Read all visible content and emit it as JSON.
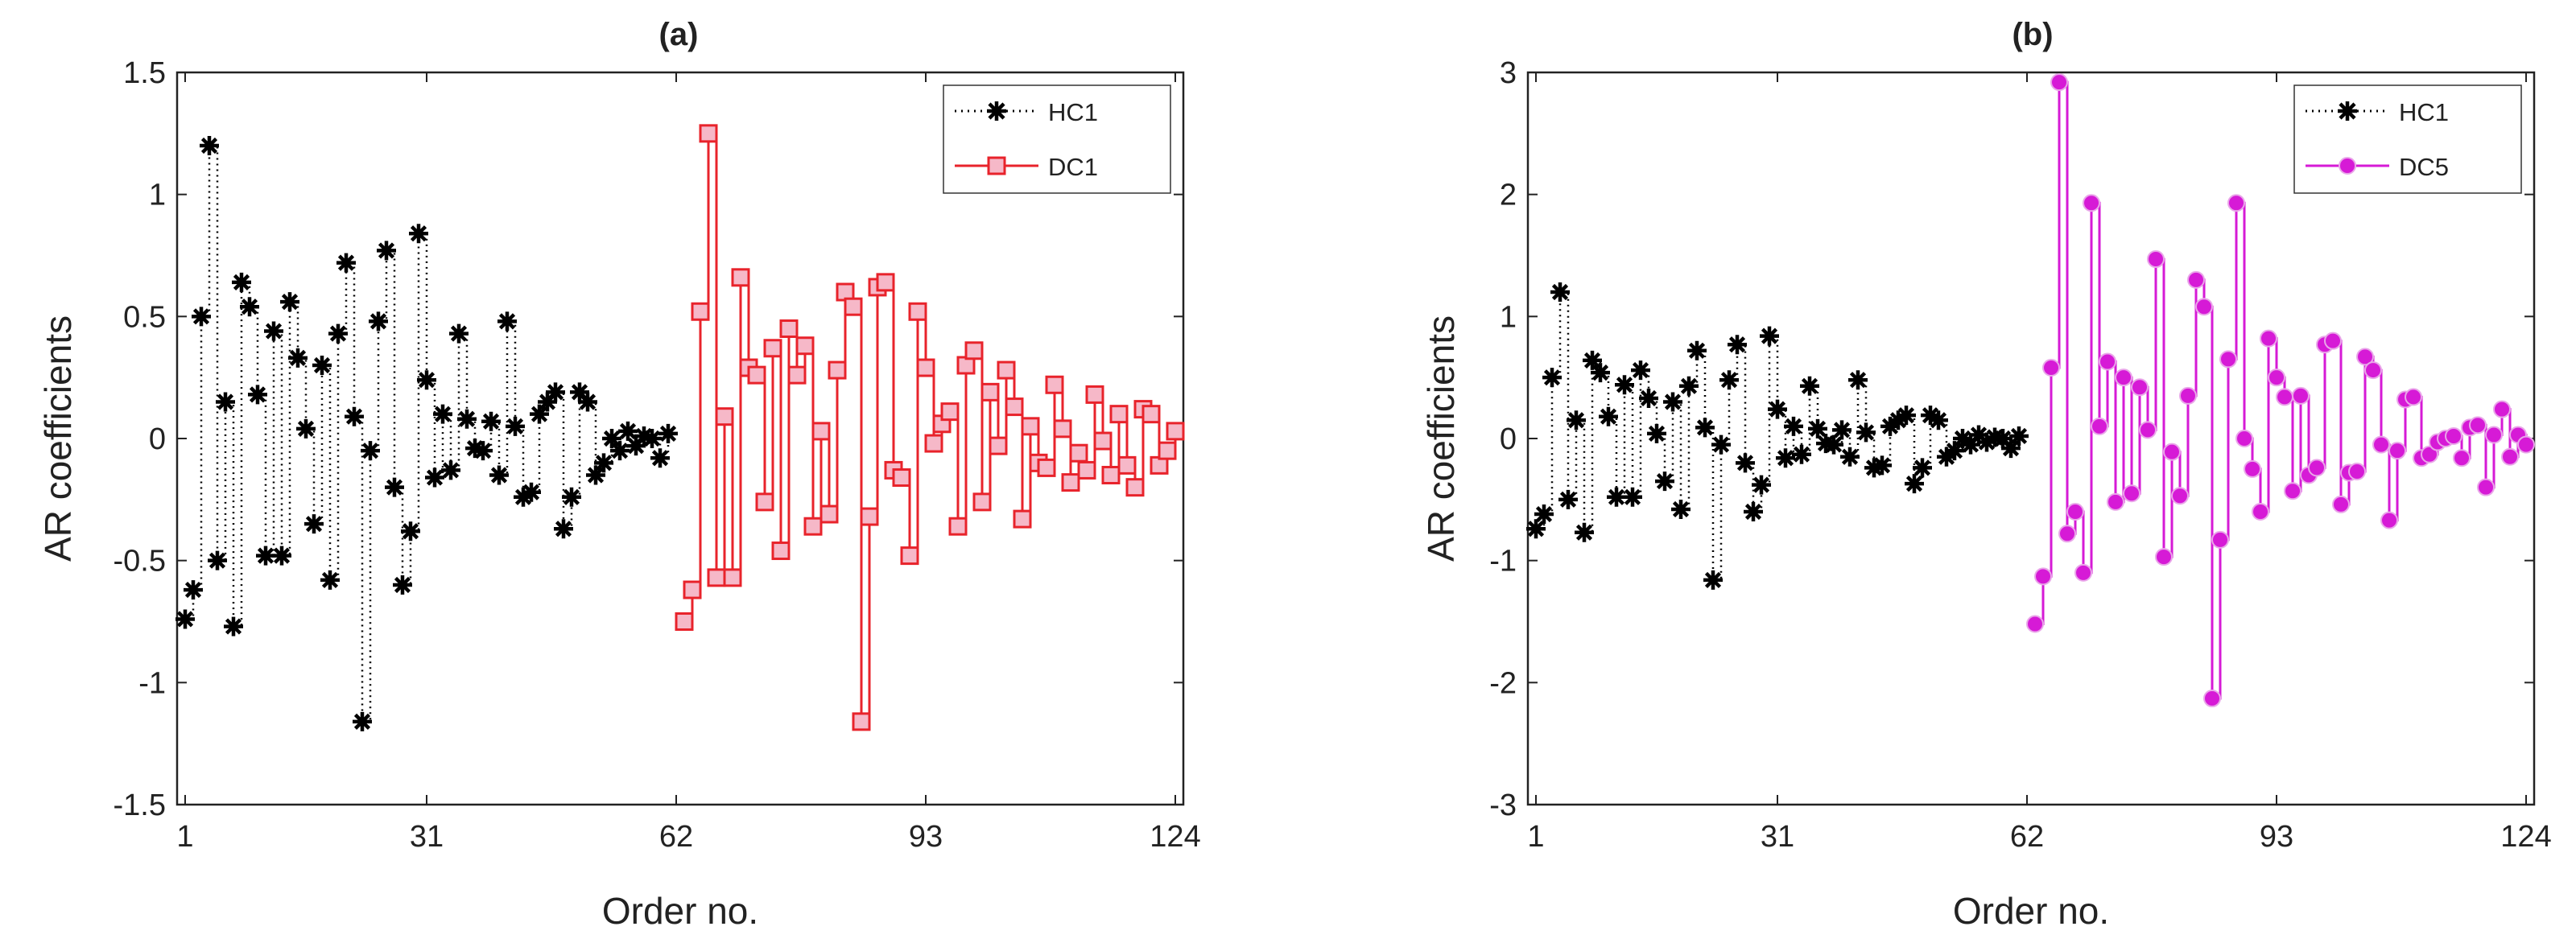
{
  "chart_data": [
    {
      "type": "line",
      "title": "(a)",
      "xlabel": "Order no.",
      "ylabel": "AR coefficients",
      "xlim": [
        0,
        125
      ],
      "ylim": [
        -1.5,
        1.5
      ],
      "xticks": [
        1,
        31,
        62,
        93,
        124
      ],
      "xtick_labels": [
        "1",
        "31",
        "62",
        "93",
        "124"
      ],
      "yticks": [
        -1.5,
        -1,
        -0.5,
        0,
        0.5,
        1,
        1.5
      ],
      "ytick_labels": [
        "-1.5",
        "-1",
        "-0.5",
        "0",
        "0.5",
        "1",
        "1.5"
      ],
      "legend": "top-right",
      "series": [
        {
          "name": "HC1",
          "color": "#000000",
          "style": "dotted-star",
          "x_start": 1,
          "values": [
            -0.74,
            -0.62,
            0.5,
            1.2,
            -0.5,
            0.15,
            -0.77,
            0.64,
            0.54,
            0.18,
            -0.48,
            0.44,
            -0.48,
            0.56,
            0.33,
            0.04,
            -0.35,
            0.3,
            -0.58,
            0.43,
            0.72,
            0.09,
            -1.16,
            -0.05,
            0.48,
            0.77,
            -0.2,
            -0.6,
            -0.38,
            0.84,
            0.24,
            -0.16,
            0.1,
            -0.13,
            0.43,
            0.08,
            -0.04,
            -0.05,
            0.07,
            -0.15,
            0.48,
            0.05,
            -0.24,
            -0.22,
            0.1,
            0.15,
            0.19,
            -0.37,
            -0.24,
            0.19,
            0.15,
            -0.15,
            -0.1,
            0.0,
            -0.05,
            0.03,
            -0.03,
            0.01,
            0.0,
            -0.08,
            0.02
          ]
        },
        {
          "name": "DC1",
          "color": "#e8232b",
          "style": "step-square",
          "x_start": 63,
          "values": [
            -0.75,
            -0.62,
            0.52,
            1.25,
            -0.57,
            0.09,
            -0.57,
            0.66,
            0.29,
            0.26,
            -0.26,
            0.37,
            -0.46,
            0.45,
            0.26,
            0.38,
            -0.36,
            0.03,
            -0.31,
            0.28,
            0.6,
            0.54,
            -1.16,
            -0.32,
            0.62,
            0.64,
            -0.13,
            -0.16,
            -0.48,
            0.52,
            0.29,
            -0.02,
            0.06,
            0.11,
            -0.36,
            0.3,
            0.36,
            -0.26,
            0.19,
            -0.03,
            0.28,
            0.13,
            -0.33,
            0.05,
            -0.1,
            -0.12,
            0.22,
            0.04,
            -0.18,
            -0.06,
            -0.13,
            0.18,
            -0.01,
            -0.15,
            0.1,
            -0.11,
            -0.2,
            0.12,
            0.1,
            -0.11,
            -0.05,
            0.03
          ]
        }
      ]
    },
    {
      "type": "line",
      "title": "(b)",
      "xlabel": "Order no.",
      "ylabel": "AR coefficients",
      "xlim": [
        0,
        125
      ],
      "ylim": [
        -3,
        3
      ],
      "xticks": [
        1,
        31,
        62,
        93,
        124
      ],
      "xtick_labels": [
        "1",
        "31",
        "62",
        "93",
        "124"
      ],
      "yticks": [
        -3,
        -2,
        -1,
        0,
        1,
        2,
        3
      ],
      "ytick_labels": [
        "-3",
        "-2",
        "-1",
        "0",
        "1",
        "2",
        "3"
      ],
      "legend": "top-right",
      "series": [
        {
          "name": "HC1",
          "color": "#000000",
          "style": "dotted-star",
          "x_start": 1,
          "values": [
            -0.74,
            -0.62,
            0.5,
            1.2,
            -0.5,
            0.15,
            -0.77,
            0.64,
            0.54,
            0.18,
            -0.48,
            0.44,
            -0.48,
            0.56,
            0.33,
            0.04,
            -0.35,
            0.3,
            -0.58,
            0.43,
            0.72,
            0.09,
            -1.16,
            -0.05,
            0.48,
            0.77,
            -0.2,
            -0.6,
            -0.38,
            0.84,
            0.24,
            -0.16,
            0.1,
            -0.13,
            0.43,
            0.08,
            -0.04,
            -0.05,
            0.07,
            -0.15,
            0.48,
            0.05,
            -0.24,
            -0.22,
            0.1,
            0.15,
            0.19,
            -0.37,
            -0.24,
            0.19,
            0.15,
            -0.15,
            -0.1,
            0.0,
            -0.05,
            0.03,
            -0.03,
            0.01,
            0.0,
            -0.08,
            0.02
          ]
        },
        {
          "name": "DC5",
          "color": "#d61ad6",
          "style": "step-circle",
          "x_start": 63,
          "values": [
            -1.52,
            -1.13,
            0.58,
            2.92,
            -0.78,
            -0.6,
            -1.1,
            1.93,
            0.1,
            0.63,
            -0.52,
            0.5,
            -0.45,
            0.42,
            0.07,
            1.47,
            -0.97,
            -0.11,
            -0.47,
            0.35,
            1.3,
            1.08,
            -2.13,
            -0.83,
            0.65,
            1.93,
            0.0,
            -0.25,
            -0.6,
            0.82,
            0.5,
            0.34,
            -0.43,
            0.35,
            -0.3,
            -0.24,
            0.77,
            0.8,
            -0.54,
            -0.28,
            -0.27,
            0.67,
            0.56,
            -0.05,
            -0.67,
            -0.1,
            0.32,
            0.34,
            -0.16,
            -0.13,
            -0.03,
            0.0,
            0.02,
            -0.16,
            0.09,
            0.11,
            -0.4,
            0.03,
            0.24,
            -0.15,
            0.03,
            -0.05
          ]
        }
      ]
    }
  ]
}
